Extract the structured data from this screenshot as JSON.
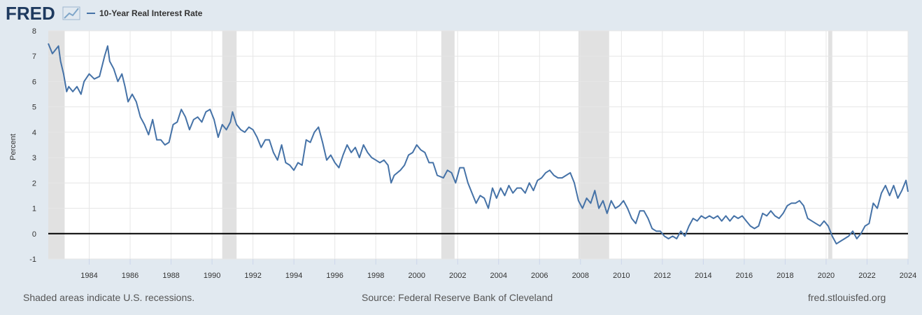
{
  "logo": "FRED",
  "footer": {
    "recession_note": "Shaded areas indicate U.S. recessions.",
    "source": "Source: Federal Reserve Bank of Cleveland",
    "site": "fred.stlouisfed.org"
  },
  "chart_data": {
    "type": "line",
    "ylabel": "Percent",
    "xlim": [
      1982,
      2024
    ],
    "ylim": [
      -1,
      8
    ],
    "xticks": [
      1984,
      1986,
      1988,
      1990,
      1992,
      1994,
      1996,
      1998,
      2000,
      2002,
      2004,
      2006,
      2008,
      2010,
      2012,
      2014,
      2016,
      2018,
      2020,
      2022,
      2024
    ],
    "yticks": [
      -1,
      0,
      1,
      2,
      3,
      4,
      5,
      6,
      7,
      8
    ],
    "grid": true,
    "reference_line": 0,
    "recession_color": "#e1e1e1",
    "recessions": [
      [
        1982,
        1982.8
      ],
      [
        1990.5,
        1991.2
      ],
      [
        2001.2,
        2001.85
      ],
      [
        2007.9,
        2009.4
      ],
      [
        2020.1,
        2020.3
      ]
    ],
    "series": [
      {
        "name": "10-Year Real Interest Rate",
        "color": "#4572a7",
        "x": [
          1982,
          1982.2,
          1982.4,
          1982.5,
          1982.6,
          1982.75,
          1982.9,
          1983,
          1983.2,
          1983.4,
          1983.6,
          1983.75,
          1984,
          1984.25,
          1984.5,
          1984.75,
          1984.9,
          1985,
          1985.2,
          1985.4,
          1985.6,
          1985.75,
          1985.9,
          1986.1,
          1986.3,
          1986.5,
          1986.7,
          1986.9,
          1987.1,
          1987.3,
          1987.5,
          1987.7,
          1987.9,
          1988.1,
          1988.3,
          1988.5,
          1988.7,
          1988.9,
          1989.1,
          1989.3,
          1989.5,
          1989.7,
          1989.9,
          1990.1,
          1990.3,
          1990.5,
          1990.7,
          1990.9,
          1991,
          1991.2,
          1991.4,
          1991.6,
          1991.8,
          1992,
          1992.2,
          1992.4,
          1992.6,
          1992.8,
          1993,
          1993.2,
          1993.4,
          1993.6,
          1993.8,
          1994,
          1994.2,
          1994.4,
          1994.6,
          1994.8,
          1995,
          1995.2,
          1995.4,
          1995.6,
          1995.8,
          1996,
          1996.2,
          1996.4,
          1996.6,
          1996.8,
          1997,
          1997.2,
          1997.4,
          1997.6,
          1997.8,
          1998,
          1998.2,
          1998.4,
          1998.6,
          1998.75,
          1998.9,
          1999.2,
          1999.4,
          1999.6,
          1999.8,
          2000,
          2000.2,
          2000.4,
          2000.6,
          2000.8,
          2001,
          2001.3,
          2001.5,
          2001.7,
          2001.9,
          2002.1,
          2002.3,
          2002.5,
          2002.7,
          2002.9,
          2003.1,
          2003.3,
          2003.5,
          2003.7,
          2003.9,
          2004.1,
          2004.3,
          2004.5,
          2004.7,
          2004.9,
          2005.1,
          2005.3,
          2005.5,
          2005.7,
          2005.9,
          2006.1,
          2006.3,
          2006.5,
          2006.7,
          2006.9,
          2007.1,
          2007.3,
          2007.5,
          2007.7,
          2007.9,
          2008.1,
          2008.3,
          2008.5,
          2008.7,
          2008.9,
          2009.1,
          2009.3,
          2009.5,
          2009.7,
          2009.9,
          2010.1,
          2010.3,
          2010.5,
          2010.7,
          2010.9,
          2011.1,
          2011.3,
          2011.5,
          2011.7,
          2011.9,
          2012.1,
          2012.3,
          2012.5,
          2012.7,
          2012.9,
          2013.1,
          2013.3,
          2013.5,
          2013.7,
          2013.9,
          2014.1,
          2014.3,
          2014.5,
          2014.7,
          2014.9,
          2015.1,
          2015.3,
          2015.5,
          2015.7,
          2015.9,
          2016.1,
          2016.3,
          2016.5,
          2016.7,
          2016.9,
          2017.1,
          2017.3,
          2017.5,
          2017.7,
          2017.9,
          2018.1,
          2018.3,
          2018.5,
          2018.7,
          2018.9,
          2019.1,
          2019.3,
          2019.5,
          2019.7,
          2019.9,
          2020.1,
          2020.3,
          2020.5,
          2020.7,
          2020.9,
          2021.1,
          2021.3,
          2021.5,
          2021.7,
          2021.9,
          2022.1,
          2022.3,
          2022.5,
          2022.7,
          2022.9,
          2023.1,
          2023.3,
          2023.5,
          2023.7,
          2023.9,
          2024
        ],
        "values": [
          7.5,
          7.1,
          7.3,
          7.4,
          6.8,
          6.3,
          5.6,
          5.8,
          5.6,
          5.8,
          5.5,
          6.0,
          6.3,
          6.1,
          6.2,
          7.0,
          7.4,
          6.8,
          6.5,
          6.0,
          6.3,
          5.8,
          5.2,
          5.5,
          5.2,
          4.6,
          4.3,
          3.9,
          4.5,
          3.7,
          3.7,
          3.5,
          3.6,
          4.3,
          4.4,
          4.9,
          4.6,
          4.1,
          4.5,
          4.6,
          4.4,
          4.8,
          4.9,
          4.5,
          3.8,
          4.3,
          4.1,
          4.4,
          4.8,
          4.3,
          4.1,
          4.0,
          4.2,
          4.1,
          3.8,
          3.4,
          3.7,
          3.7,
          3.2,
          2.9,
          3.5,
          2.8,
          2.7,
          2.5,
          2.8,
          2.7,
          3.7,
          3.6,
          4.0,
          4.2,
          3.6,
          2.9,
          3.1,
          2.8,
          2.6,
          3.1,
          3.5,
          3.2,
          3.4,
          3.0,
          3.5,
          3.2,
          3.0,
          2.9,
          2.8,
          2.9,
          2.7,
          2.0,
          2.3,
          2.5,
          2.7,
          3.1,
          3.2,
          3.5,
          3.3,
          3.2,
          2.8,
          2.8,
          2.3,
          2.2,
          2.5,
          2.4,
          2.0,
          2.6,
          2.6,
          2.0,
          1.6,
          1.2,
          1.5,
          1.4,
          1.0,
          1.8,
          1.4,
          1.8,
          1.5,
          1.9,
          1.6,
          1.8,
          1.8,
          1.6,
          2.0,
          1.7,
          2.1,
          2.2,
          2.4,
          2.5,
          2.3,
          2.2,
          2.2,
          2.3,
          2.4,
          2.0,
          1.3,
          1.0,
          1.4,
          1.2,
          1.7,
          1.0,
          1.3,
          0.8,
          1.3,
          1.0,
          1.1,
          1.3,
          1.0,
          0.6,
          0.4,
          0.9,
          0.9,
          0.6,
          0.2,
          0.1,
          0.1,
          -0.1,
          -0.2,
          -0.1,
          -0.2,
          0.1,
          -0.1,
          0.3,
          0.6,
          0.5,
          0.7,
          0.6,
          0.7,
          0.6,
          0.7,
          0.5,
          0.7,
          0.5,
          0.7,
          0.6,
          0.7,
          0.5,
          0.3,
          0.2,
          0.3,
          0.8,
          0.7,
          0.9,
          0.7,
          0.6,
          0.8,
          1.1,
          1.2,
          1.2,
          1.3,
          1.1,
          0.6,
          0.5,
          0.4,
          0.3,
          0.5,
          0.3,
          -0.1,
          -0.4,
          -0.3,
          -0.2,
          -0.1,
          0.1,
          -0.2,
          0.0,
          0.3,
          0.4,
          1.2,
          1.0,
          1.6,
          1.9,
          1.5,
          1.9,
          1.4,
          1.7,
          2.1,
          1.65
        ]
      }
    ]
  }
}
